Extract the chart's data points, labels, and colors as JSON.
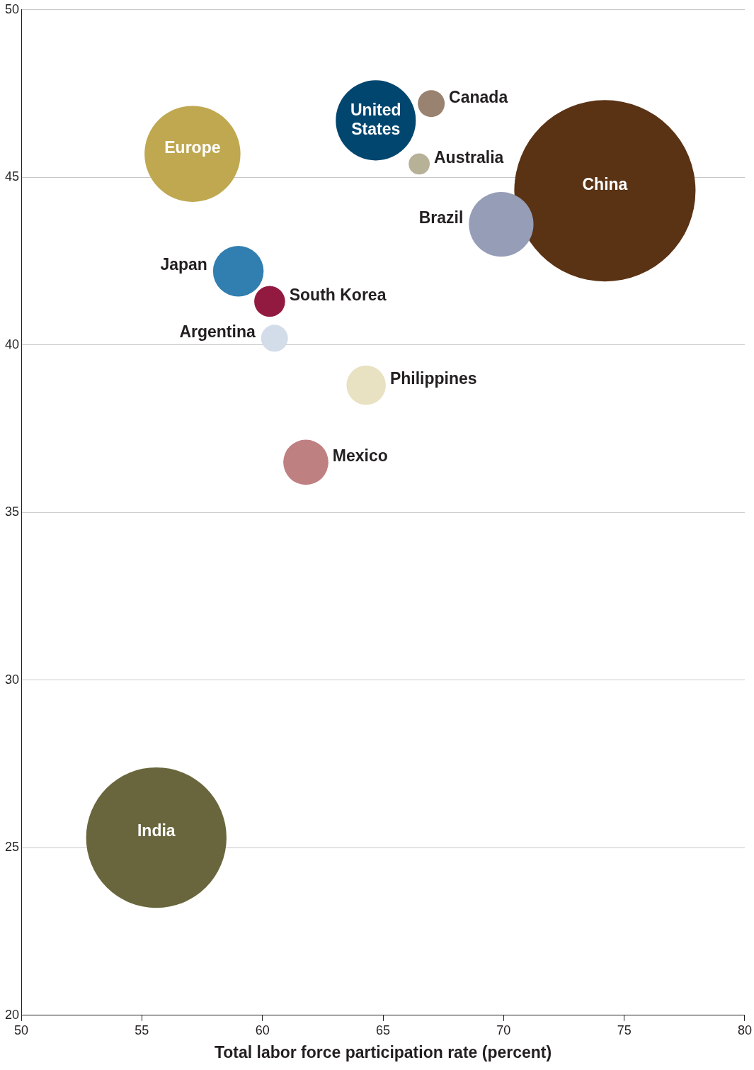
{
  "chart_data": {
    "type": "bubble",
    "xlabel": "Total labor force participation rate (percent)",
    "xlim": [
      50,
      80
    ],
    "xticks": [
      50,
      55,
      60,
      65,
      70,
      75,
      80
    ],
    "ylim": [
      20,
      50
    ],
    "yticks": [
      20,
      25,
      30,
      35,
      40,
      45,
      50
    ],
    "grid": "y",
    "legend": false,
    "series": [
      {
        "name": "Europe",
        "color": "#bfa850",
        "x": [
          57.1
        ],
        "values": [
          45.7
        ],
        "sizes": [
          0.28
        ]
      },
      {
        "name": "United States",
        "color": "#00466e",
        "x": [
          64.7
        ],
        "values": [
          46.7
        ],
        "sizes": [
          0.195
        ]
      },
      {
        "name": "Canada",
        "color": "#9a8271",
        "x": [
          67.0
        ],
        "values": [
          47.2
        ],
        "sizes": [
          0.022
        ]
      },
      {
        "name": "Australia",
        "color": "#b7b198",
        "x": [
          66.5
        ],
        "values": [
          45.4
        ],
        "sizes": [
          0.0135
        ]
      },
      {
        "name": "China",
        "color": "#5a3214",
        "x": [
          74.2
        ],
        "values": [
          44.6
        ],
        "sizes": [
          1
        ]
      },
      {
        "name": "Brazil",
        "color": "#959db7",
        "x": [
          69.9
        ],
        "values": [
          43.6
        ],
        "sizes": [
          0.127
        ]
      },
      {
        "name": "Japan",
        "color": "#317eb0",
        "x": [
          59.0
        ],
        "values": [
          42.2
        ],
        "sizes": [
          0.078
        ]
      },
      {
        "name": "South Korea",
        "color": "#921a40",
        "x": [
          60.3
        ],
        "values": [
          41.3
        ],
        "sizes": [
          0.029
        ]
      },
      {
        "name": "Argentina",
        "color": "#d3dde9",
        "x": [
          60.5
        ],
        "values": [
          40.2
        ],
        "sizes": [
          0.022
        ]
      },
      {
        "name": "Philippines",
        "color": "#e8e1c2",
        "x": [
          64.3
        ],
        "values": [
          38.8
        ],
        "sizes": [
          0.047
        ]
      },
      {
        "name": "Mexico",
        "color": "#bf8082",
        "x": [
          61.8
        ],
        "values": [
          36.5
        ],
        "sizes": [
          0.062
        ]
      },
      {
        "name": "India",
        "color": "#69663d",
        "x": [
          55.6
        ],
        "values": [
          25.3
        ],
        "sizes": [
          0.6
        ]
      }
    ]
  }
}
